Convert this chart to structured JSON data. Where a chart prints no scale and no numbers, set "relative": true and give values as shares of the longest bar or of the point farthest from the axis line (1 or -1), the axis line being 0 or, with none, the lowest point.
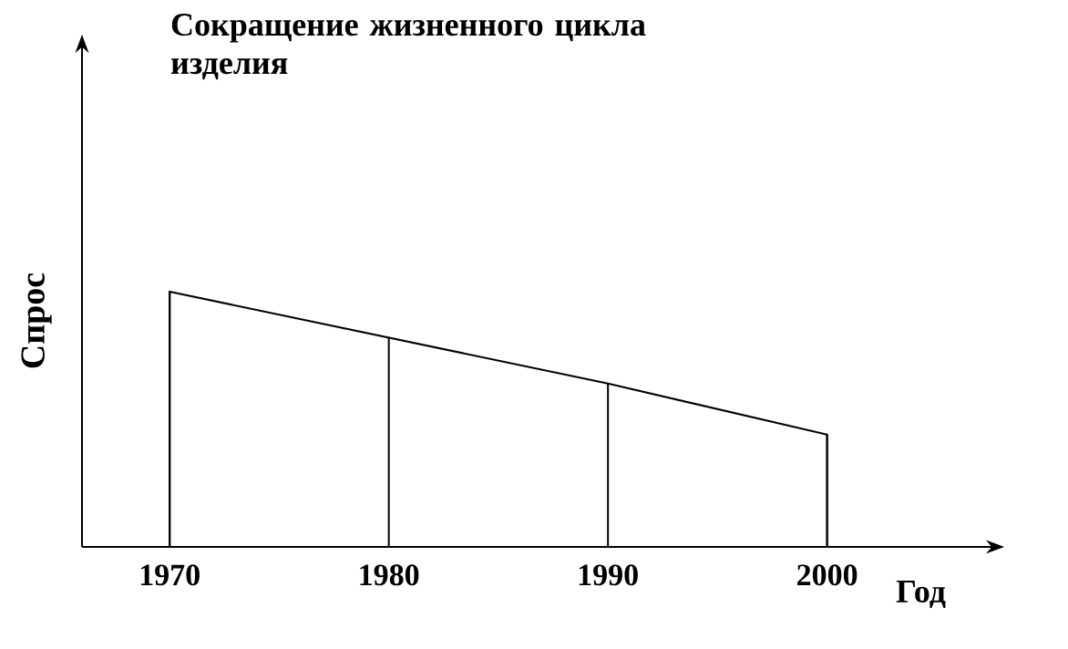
{
  "chart_data": {
    "type": "area",
    "title": "Сокращение жизненного цикла изделия",
    "xlabel": "Год",
    "ylabel": "Спрос",
    "x": [
      1970,
      1980,
      1990,
      2000
    ],
    "relative": true,
    "series": [
      {
        "color": "#000000",
        "values": [
          1,
          0.82,
          0.64,
          0.44
        ]
      },
      {
        "type": "bar",
        "color": "#000000",
        "values": [
          1,
          0.82,
          0.64,
          0.44
        ]
      }
    ],
    "xlim": [
      1966,
      2008
    ],
    "xticks": [
      1970,
      1980,
      1990,
      2000
    ]
  }
}
